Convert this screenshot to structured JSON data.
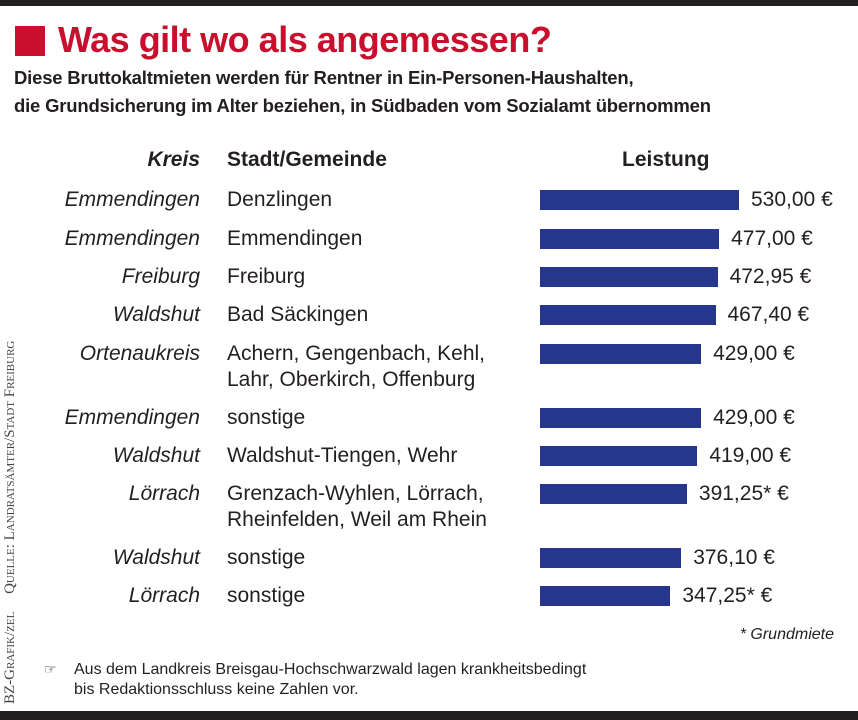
{
  "header": {
    "title": "Was gilt wo als angemessen?",
    "subtitle_line1": "Diese Bruttokaltmieten werden für Rentner in Ein-Personen-Haushalten,",
    "subtitle_line2": "die Grundsicherung im Alter beziehen, in Südbaden vom Sozialamt übernommen"
  },
  "side_credit": {
    "source": "Quelle: Landratsämter/Stadt Freiburg",
    "graphic": "BZ-Grafik/zel"
  },
  "colors": {
    "accent": "#c8102e",
    "bar": "#26368c",
    "frame": "#231f20"
  },
  "chart_data": {
    "type": "bar",
    "orientation": "horizontal",
    "title": "Was gilt wo als angemessen?",
    "columns": [
      "Kreis",
      "Stadt/Gemeinde",
      "Leistung"
    ],
    "unit": "€",
    "rows": [
      {
        "kreis": "Emmendingen",
        "stadt": "Denzlingen",
        "value": 530.0,
        "label": "530,00 €"
      },
      {
        "kreis": "Emmendingen",
        "stadt": "Emmendingen",
        "value": 477.0,
        "label": "477,00 €"
      },
      {
        "kreis": "Freiburg",
        "stadt": "Freiburg",
        "value": 472.95,
        "label": "472,95 €"
      },
      {
        "kreis": "Waldshut",
        "stadt": "Bad Säckingen",
        "value": 467.4,
        "label": "467,40 €"
      },
      {
        "kreis": "Ortenaukreis",
        "stadt": "Achern, Gengenbach, Kehl,\nLahr, Oberkirch, Offenburg",
        "value": 429.0,
        "label": "429,00 €"
      },
      {
        "kreis": "Emmendingen",
        "stadt": "sonstige",
        "value": 429.0,
        "label": "429,00 €"
      },
      {
        "kreis": "Waldshut",
        "stadt": "Waldshut-Tiengen, Wehr",
        "value": 419.0,
        "label": "419,00 €"
      },
      {
        "kreis": "Lörrach",
        "stadt": "Grenzach-Wyhlen, Lörrach,\nRheinfelden, Weil am Rhein",
        "value": 391.25,
        "label": "391,25* €"
      },
      {
        "kreis": "Waldshut",
        "stadt": "sonstige",
        "value": 376.1,
        "label": "376,10 €"
      },
      {
        "kreis": "Lörrach",
        "stadt": "sonstige",
        "value": 347.25,
        "label": "347,25* €"
      }
    ],
    "xlim": [
      0,
      530
    ],
    "grid": false,
    "annotation": "* Grundmiete"
  },
  "footer": {
    "icon": "pointing-hand-icon",
    "hand_glyph": "☞",
    "note": "Aus dem Landkreis Breisgau-Hochschwarzwald lagen krankheitsbedingt\nbis Redaktionsschluss keine Zahlen vor."
  }
}
